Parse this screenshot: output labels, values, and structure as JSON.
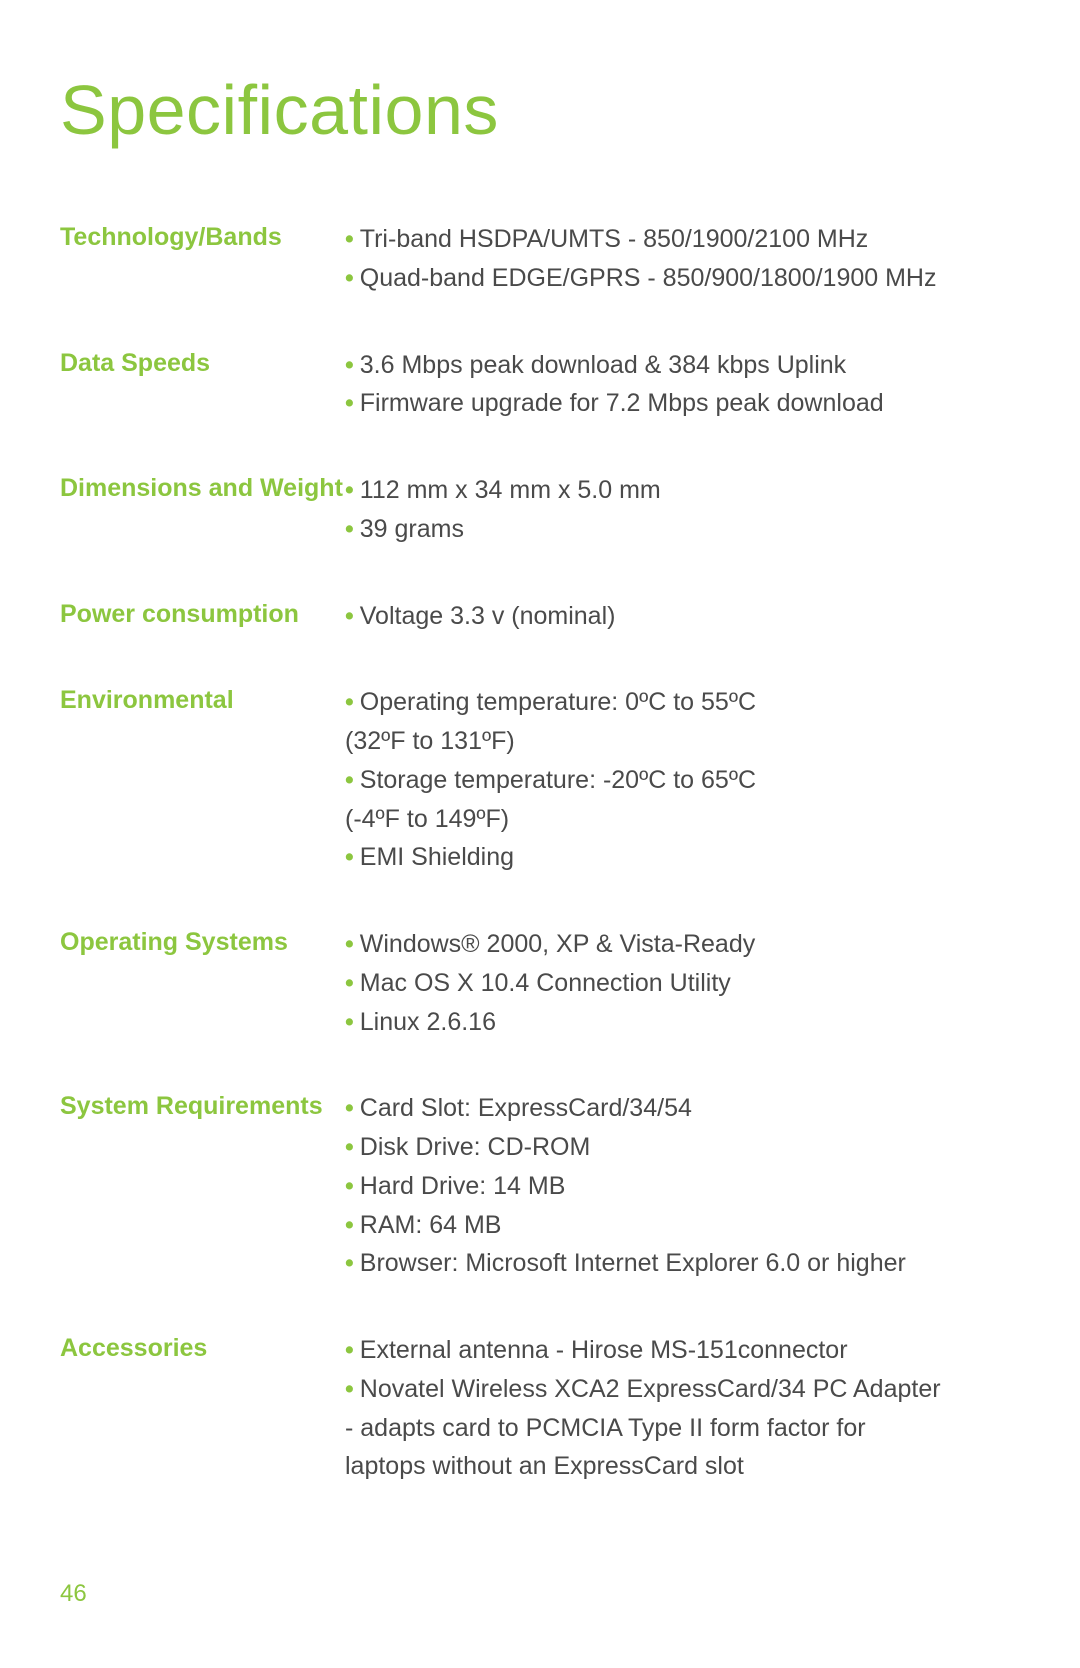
{
  "title": "Specifications",
  "colors": {
    "accent": "#8cc63f",
    "text": "#4a4a4a",
    "background": "#ffffff"
  },
  "page_number": "46",
  "sections": {
    "tech_bands": {
      "label": "Technology/Bands",
      "item0": "Tri-band HSDPA/UMTS - 850/1900/2100 MHz",
      "item1": "Quad-band EDGE/GPRS - 850/900/1800/1900 MHz"
    },
    "data_speeds": {
      "label": "Data Speeds",
      "item0": "3.6 Mbps peak download & 384 kbps Uplink",
      "item1": "Firmware upgrade for 7.2 Mbps peak download"
    },
    "dimensions": {
      "label": "Dimensions and Weight",
      "item0": "112 mm x 34 mm x 5.0 mm",
      "item1": "39 grams"
    },
    "power": {
      "label": "Power consumption",
      "item0": "Voltage 3.3 v (nominal)"
    },
    "environmental": {
      "label": "Environmental",
      "item0": "Operating temperature: 0ºC to 55ºC",
      "item0b": "(32ºF to 131ºF)",
      "item1": "Storage temperature: -20ºC to 65ºC",
      "item1b": "(-4ºF to 149ºF)",
      "item2": "EMI Shielding"
    },
    "os": {
      "label": "Operating Systems",
      "item0": "Windows® 2000, XP & Vista-Ready",
      "item1": "Mac OS X 10.4 Connection Utility",
      "item2": "Linux 2.6.16"
    },
    "sysreq": {
      "label": "System Requirements",
      "item0": "Card Slot: ExpressCard/34/54",
      "item1": "Disk Drive: CD-ROM",
      "item2": "Hard Drive: 14 MB",
      "item3": "RAM: 64 MB",
      "item4": "Browser: Microsoft Internet Explorer 6.0 or higher"
    },
    "accessories": {
      "label": "Accessories",
      "item0": "External antenna - Hirose MS-151connector",
      "item1": "Novatel Wireless XCA2 ExpressCard/34 PC Adapter",
      "item1b": "- adapts card to PCMCIA Type II form factor for",
      "item1c": "laptops without an ExpressCard slot"
    }
  }
}
